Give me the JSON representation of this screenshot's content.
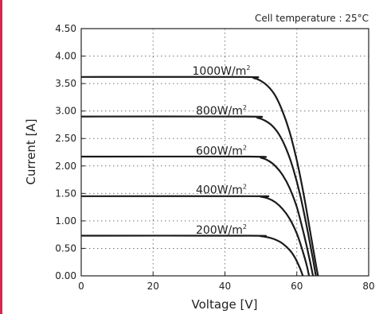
{
  "colors": {
    "accent_bar": "#d7264f",
    "curve": "#1a1a1a",
    "grid": "#777777"
  },
  "chart_data": {
    "type": "line",
    "title": "",
    "annotation": "Cell temperature : 25°C",
    "xlabel": "Voltage [V]",
    "ylabel": "Current [A]",
    "xlim": [
      0,
      80
    ],
    "ylim": [
      0,
      4.5
    ],
    "x_ticks": [
      "0",
      "20",
      "40",
      "60",
      "80"
    ],
    "x_tick_values": [
      0,
      20,
      40,
      60,
      80
    ],
    "y_ticks": [
      "0.00",
      "0.50",
      "1.00",
      "1.50",
      "2.00",
      "2.50",
      "3.00",
      "3.50",
      "4.00",
      "4.50"
    ],
    "y_tick_values": [
      0,
      0.5,
      1,
      1.5,
      2,
      2.5,
      3,
      3.5,
      4,
      4.5
    ],
    "grid": true,
    "series": [
      {
        "name": "1000W/m²",
        "label_text": "1000W/m",
        "label_sup": "2",
        "label_at": [
          39,
          3.66
        ],
        "points": [
          [
            0,
            3.62
          ],
          [
            45,
            3.62
          ],
          [
            48,
            3.6
          ],
          [
            50,
            3.55
          ],
          [
            52,
            3.45
          ],
          [
            54,
            3.28
          ],
          [
            56,
            3.0
          ],
          [
            58,
            2.62
          ],
          [
            60,
            2.1
          ],
          [
            62,
            1.45
          ],
          [
            64,
            0.7
          ],
          [
            65.2,
            0.25
          ],
          [
            65.9,
            0
          ]
        ]
      },
      {
        "name": "800W/m²",
        "label_text": "800W/m",
        "label_sup": "2",
        "label_at": [
          39,
          2.94
        ],
        "points": [
          [
            0,
            2.9
          ],
          [
            46,
            2.9
          ],
          [
            49,
            2.88
          ],
          [
            51,
            2.83
          ],
          [
            53,
            2.74
          ],
          [
            55,
            2.58
          ],
          [
            57,
            2.32
          ],
          [
            59,
            1.95
          ],
          [
            61,
            1.45
          ],
          [
            63,
            0.82
          ],
          [
            64.5,
            0.3
          ],
          [
            65.3,
            0
          ]
        ]
      },
      {
        "name": "600W/m²",
        "label_text": "600W/m",
        "label_sup": "2",
        "label_at": [
          39,
          2.21
        ],
        "points": [
          [
            0,
            2.17
          ],
          [
            47,
            2.17
          ],
          [
            50,
            2.15
          ],
          [
            52,
            2.1
          ],
          [
            54,
            2.0
          ],
          [
            56,
            1.84
          ],
          [
            58,
            1.6
          ],
          [
            60,
            1.25
          ],
          [
            62,
            0.75
          ],
          [
            63.5,
            0.32
          ],
          [
            64.5,
            0
          ]
        ]
      },
      {
        "name": "400W/m²",
        "label_text": "400W/m",
        "label_sup": "2",
        "label_at": [
          39,
          1.5
        ],
        "points": [
          [
            0,
            1.45
          ],
          [
            48,
            1.45
          ],
          [
            50,
            1.44
          ],
          [
            52,
            1.41
          ],
          [
            54,
            1.34
          ],
          [
            56,
            1.22
          ],
          [
            58,
            1.04
          ],
          [
            60,
            0.77
          ],
          [
            61.5,
            0.48
          ],
          [
            62.8,
            0.18
          ],
          [
            63.4,
            0
          ]
        ]
      },
      {
        "name": "200W/m²",
        "label_text": "200W/m",
        "label_sup": "2",
        "label_at": [
          39,
          0.77
        ],
        "points": [
          [
            0,
            0.73
          ],
          [
            47,
            0.73
          ],
          [
            50,
            0.72
          ],
          [
            52,
            0.7
          ],
          [
            54,
            0.66
          ],
          [
            56,
            0.59
          ],
          [
            58,
            0.47
          ],
          [
            59.5,
            0.33
          ],
          [
            60.8,
            0.15
          ],
          [
            61.7,
            0
          ]
        ]
      }
    ]
  }
}
